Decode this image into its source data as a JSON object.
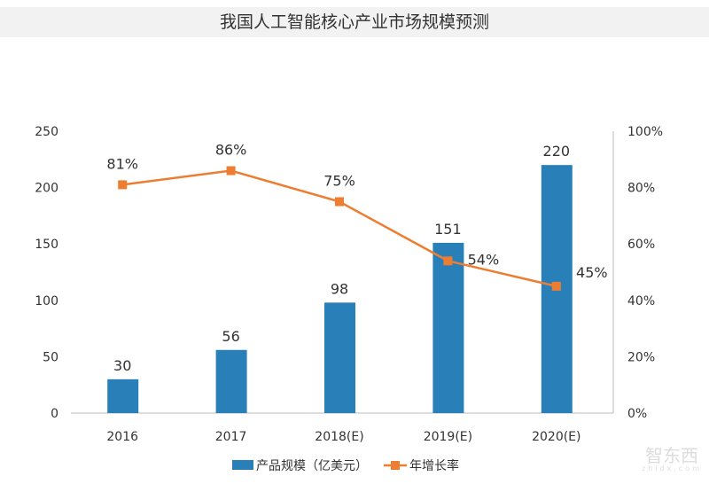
{
  "chart_data": {
    "type": "bar+line",
    "title": "我国人工智能核心产业市场规模预测",
    "categories": [
      "2016",
      "2017",
      "2018(E)",
      "2019(E)",
      "2020(E)"
    ],
    "series": [
      {
        "name": "产品规模（亿美元）",
        "type": "bar",
        "axis": "left",
        "values": [
          30,
          56,
          98,
          151,
          220
        ],
        "labels": [
          "30",
          "56",
          "98",
          "151",
          "220"
        ],
        "color": "#2980b9"
      },
      {
        "name": "年增长率",
        "type": "line",
        "axis": "right",
        "values": [
          81,
          86,
          75,
          54,
          45
        ],
        "labels": [
          "81%",
          "86%",
          "75%",
          "54%",
          "45%"
        ],
        "color": "#ed7d31"
      }
    ],
    "ylim_left": [
      0,
      250
    ],
    "yticks_left": [
      "0",
      "50",
      "100",
      "150",
      "200",
      "250"
    ],
    "ylim_right": [
      0,
      100
    ],
    "yticks_right": [
      "0%",
      "20%",
      "40%",
      "60%",
      "80%",
      "100%"
    ],
    "grid": false,
    "legend": "bottom"
  },
  "watermark": {
    "text": "智东西",
    "sub": "zhidx.com"
  }
}
